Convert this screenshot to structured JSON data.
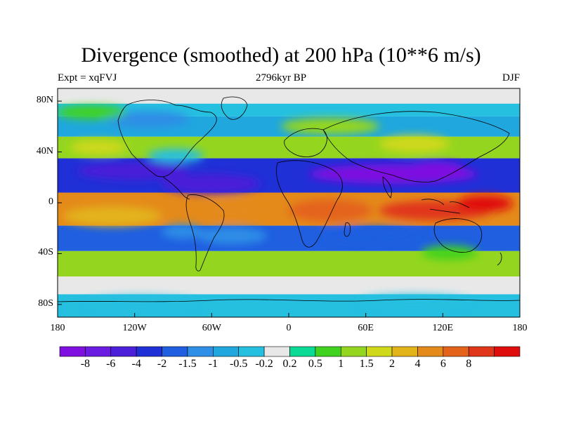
{
  "title": "Divergence (smoothed) at 200 hPa (10**6 m/s)",
  "subtitle": {
    "left": "Expt = xqFVJ",
    "center": "2796kyr BP",
    "right": "DJF"
  },
  "lat_labels": [
    "80N",
    "40N",
    "0",
    "40S",
    "80S"
  ],
  "lon_labels": [
    "180",
    "120W",
    "60W",
    "0",
    "60E",
    "120E",
    "180"
  ],
  "colorbar": {
    "colors": [
      "#7f10e0",
      "#6a1ce0",
      "#4c1fd8",
      "#1f30d6",
      "#1f5fe0",
      "#2f8ee6",
      "#1fa7de",
      "#25bfe0",
      "#e8e8e8",
      "#0bd996",
      "#3fd21f",
      "#94d61f",
      "#d0d81a",
      "#e3b31a",
      "#e48a1a",
      "#e4631a",
      "#e0361a",
      "#e00d0d"
    ],
    "labels": [
      "-8",
      "-6",
      "-4",
      "-2",
      "-1.5",
      "-1",
      "-0.5",
      "-0.2",
      "0.2",
      "0.5",
      "1",
      "1.5",
      "2",
      "4",
      "6",
      "8"
    ]
  },
  "chart_data": {
    "type": "filled-contour-map",
    "title": "Divergence (smoothed) at 200 hPa (10**6 m/s)",
    "experiment": "Expt = xqFVJ",
    "period": "2796kyr BP",
    "season": "DJF",
    "lon_range": [
      -180,
      180
    ],
    "lat_range": [
      -90,
      90
    ],
    "levels": [
      -8,
      -6,
      -4,
      -2,
      -1.5,
      -1,
      -0.5,
      -0.2,
      0.2,
      0.5,
      1,
      1.5,
      2,
      4,
      6,
      8
    ],
    "bands": [
      {
        "lat_from": 90,
        "lat_to": 78,
        "class": "weak",
        "colorIndex": 8
      },
      {
        "lat_from": 78,
        "lat_to": 68,
        "class": "convergence",
        "colorIndex": 7
      },
      {
        "lat_from": 68,
        "lat_to": 52,
        "class": "mixed",
        "colorIndex": 6
      },
      {
        "lat_from": 52,
        "lat_to": 35,
        "class": "divergence",
        "colorIndex": 11
      },
      {
        "lat_from": 35,
        "lat_to": 8,
        "class": "strong convergence",
        "colorIndex": 3
      },
      {
        "lat_from": 8,
        "lat_to": -18,
        "class": "strong divergence",
        "colorIndex": 14
      },
      {
        "lat_from": -18,
        "lat_to": -38,
        "class": "convergence",
        "colorIndex": 4
      },
      {
        "lat_from": -38,
        "lat_to": -58,
        "class": "divergence",
        "colorIndex": 11
      },
      {
        "lat_from": -58,
        "lat_to": -72,
        "class": "weak",
        "colorIndex": 8
      },
      {
        "lat_from": -72,
        "lat_to": -90,
        "class": "convergence",
        "colorIndex": 7
      }
    ]
  }
}
